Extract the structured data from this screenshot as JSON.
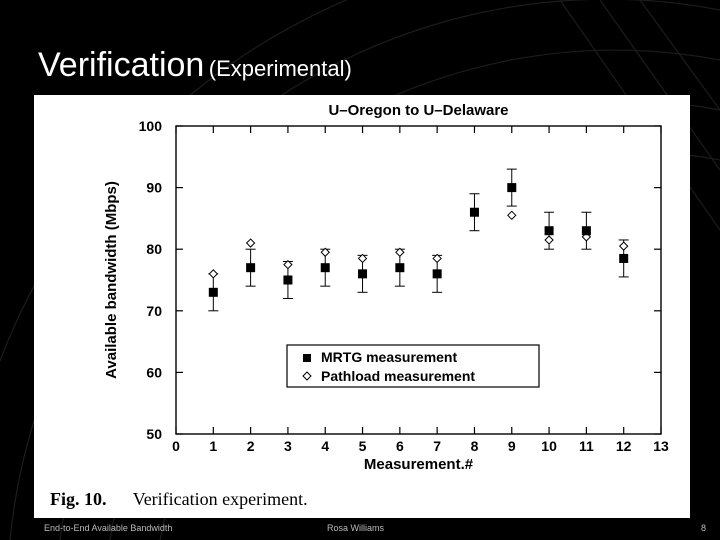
{
  "slide": {
    "title_main": "Verification",
    "title_sub": "(Experimental)",
    "caption_number": "Fig. 10.",
    "caption_text": "Verification experiment.",
    "footer_left": "End-to-End Available Bandwidth",
    "footer_center": "Rosa Williams",
    "footer_right": "8"
  },
  "chart_data": {
    "type": "scatter",
    "title": "U–Oregon to U–Delaware",
    "xlabel": "Measurement.#",
    "ylabel": "Available bandwidth (Mbps)",
    "xlim": [
      0,
      13
    ],
    "ylim": [
      50,
      100
    ],
    "xticks": [
      0,
      1,
      2,
      3,
      4,
      5,
      6,
      7,
      8,
      9,
      10,
      11,
      12,
      13
    ],
    "yticks": [
      50,
      60,
      70,
      80,
      90,
      100
    ],
    "legend_position": "lower-right",
    "grid": false,
    "series": [
      {
        "name": "MRTG measurement",
        "marker": "filled-square",
        "color": "#000000",
        "x": [
          1,
          2,
          3,
          4,
          5,
          6,
          7,
          8,
          9,
          10,
          11,
          12
        ],
        "y": [
          73,
          77,
          75,
          77,
          76,
          77,
          76,
          86,
          90,
          83,
          83,
          78.5
        ],
        "error_low": [
          70,
          74,
          72,
          74,
          73,
          74,
          73,
          83,
          87,
          80,
          80,
          75.5
        ],
        "error_high": [
          76,
          80,
          78,
          80,
          79,
          80,
          79,
          89,
          93,
          86,
          86,
          81.5
        ]
      },
      {
        "name": "Pathload measurement",
        "marker": "open-diamond",
        "color": "#000000",
        "x": [
          1,
          2,
          3,
          4,
          5,
          6,
          7,
          8,
          9,
          10,
          11,
          12
        ],
        "y": [
          76,
          81,
          77.5,
          79.5,
          78.5,
          79.5,
          78.5,
          86,
          85.5,
          81.5,
          82,
          80.5
        ]
      }
    ]
  }
}
